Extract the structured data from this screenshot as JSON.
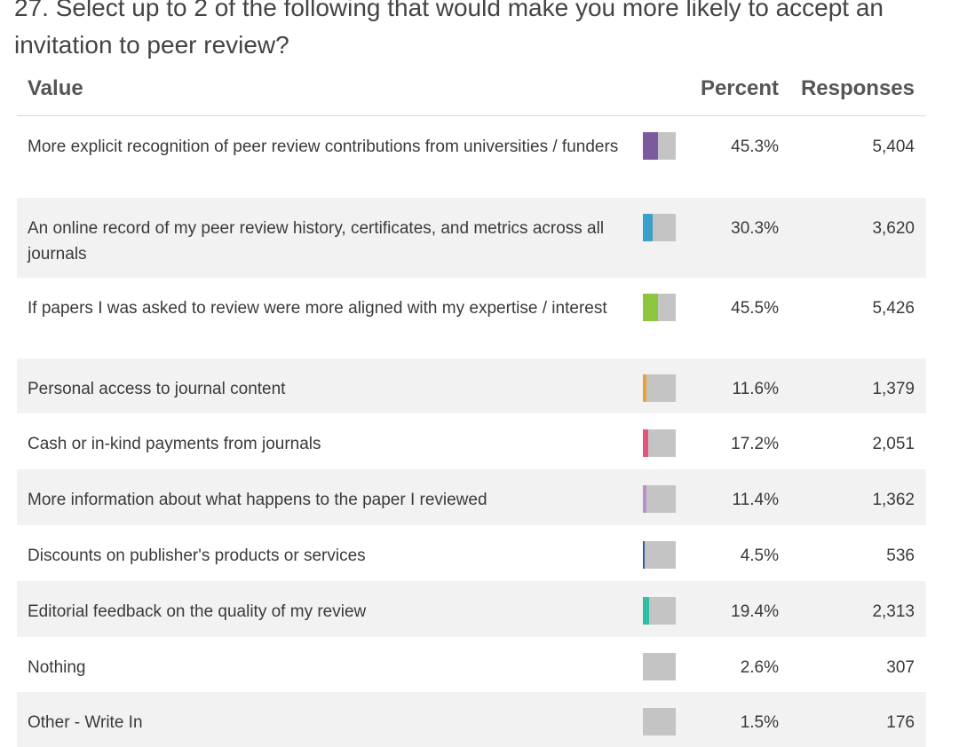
{
  "question": {
    "title": "27. Select up to 2 of the following that would make you more likely to accept an invitation to peer review?"
  },
  "table": {
    "headers": {
      "value": "Value",
      "percent": "Percent",
      "responses": "Responses"
    }
  },
  "chart_data": {
    "type": "table",
    "title": "27. Select up to 2 of the following that would make you more likely to accept an invitation to peer review?",
    "columns": [
      "Value",
      "Percent",
      "Responses"
    ],
    "rows": [
      {
        "label": "More explicit recognition of peer review contributions from universities / funders",
        "percent": 45.3,
        "percent_text": "45.3%",
        "responses": 5404,
        "responses_text": "5,404",
        "color": "#7b5b9e"
      },
      {
        "label": "An online record of my peer review history, certificates, and metrics across all journals",
        "percent": 30.3,
        "percent_text": "30.3%",
        "responses": 3620,
        "responses_text": "3,620",
        "color": "#3a9fc9"
      },
      {
        "label": "If papers I was asked to review were more aligned with my expertise / interest",
        "percent": 45.5,
        "percent_text": "45.5%",
        "responses": 5426,
        "responses_text": "5,426",
        "color": "#8cc63e"
      },
      {
        "label": "Personal access to journal content",
        "percent": 11.6,
        "percent_text": "11.6%",
        "responses": 1379,
        "responses_text": "1,379",
        "color": "#e8a23a"
      },
      {
        "label": "Cash or in-kind payments from journals",
        "percent": 17.2,
        "percent_text": "17.2%",
        "responses": 2051,
        "responses_text": "2,051",
        "color": "#e0567a"
      },
      {
        "label": "More information about what happens to the paper I reviewed",
        "percent": 11.4,
        "percent_text": "11.4%",
        "responses": 1362,
        "responses_text": "1,362",
        "color": "#b98fd0"
      },
      {
        "label": "Discounts on publisher's products or services",
        "percent": 4.5,
        "percent_text": "4.5%",
        "responses": 536,
        "responses_text": "536",
        "color": "#2f5f9e"
      },
      {
        "label": "Editorial feedback on the quality of my review",
        "percent": 19.4,
        "percent_text": "19.4%",
        "responses": 2313,
        "responses_text": "2,313",
        "color": "#2fbfa7"
      },
      {
        "label": "Nothing",
        "percent": 2.6,
        "percent_text": "2.6%",
        "responses": 307,
        "responses_text": "307",
        "color": "#c4c4c4"
      },
      {
        "label": "Other - Write In",
        "percent": 1.5,
        "percent_text": "1.5%",
        "responses": 176,
        "responses_text": "176",
        "color": "#c4c4c4"
      }
    ]
  }
}
